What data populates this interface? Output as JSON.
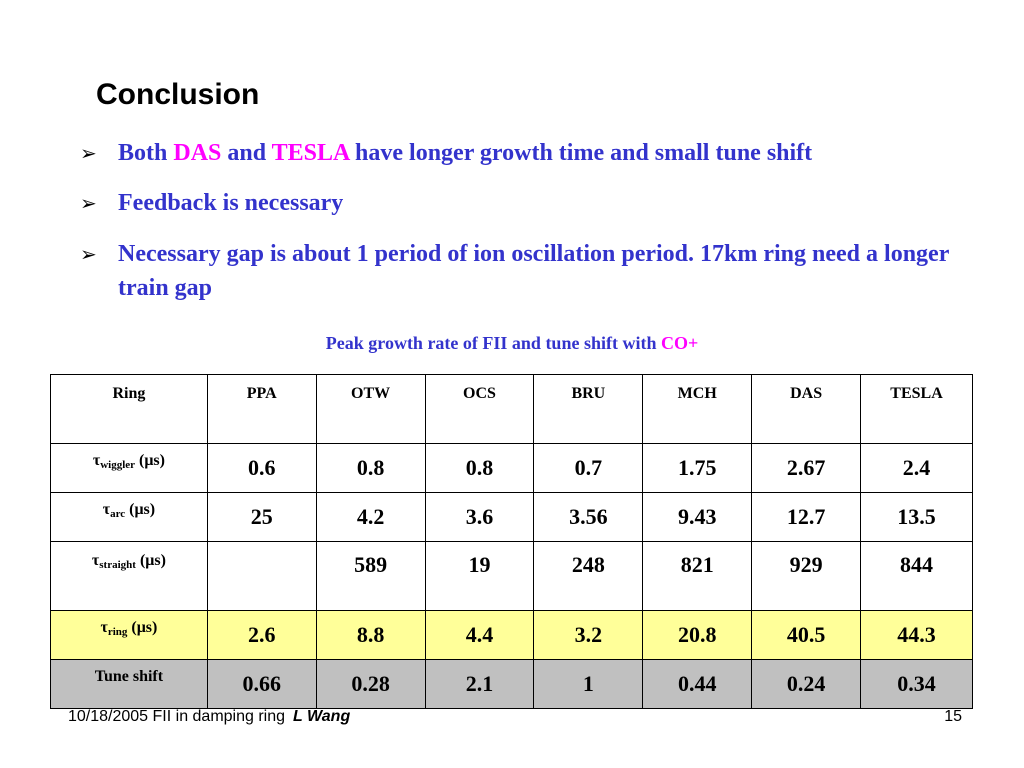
{
  "slide": {
    "title": "Conclusion",
    "bullets": [
      {
        "parts": [
          "Both ",
          "DAS",
          " and ",
          "TESLA",
          " have longer growth time and small tune shift"
        ]
      },
      {
        "text": "Feedback is necessary"
      },
      {
        "text": "Necessary gap is about 1 period of ion oscillation period. 17km ring need a longer train gap"
      }
    ],
    "bullet_marker": "➢"
  },
  "table": {
    "caption_main": "Peak growth rate of FII and tune shift with ",
    "caption_highlight": "CO+",
    "columns": [
      "Ring",
      "PPA",
      "OTW",
      "OCS",
      "BRU",
      "MCH",
      "DAS",
      "TESLA"
    ],
    "rows": [
      {
        "sym": "τ",
        "sub": "wiggler",
        "unit": " (μs)",
        "values": [
          "0.6",
          "0.8",
          "0.8",
          "0.7",
          "1.75",
          "2.67",
          "2.4"
        ]
      },
      {
        "sym": "τ",
        "sub": "arc",
        "unit": " (μs)",
        "values": [
          "25",
          "4.2",
          "3.6",
          "3.56",
          "9.43",
          "12.7",
          "13.5"
        ]
      },
      {
        "sym": "τ",
        "sub": "straight",
        "unit": " (μs)",
        "values": [
          "",
          "589",
          "19",
          "248",
          "821",
          "929",
          "844"
        ]
      },
      {
        "sym": "τ",
        "sub": "ring",
        "unit": " (μs)",
        "values": [
          "2.6",
          "8.8",
          "4.4",
          "3.2",
          "20.8",
          "40.5",
          "44.3"
        ]
      },
      {
        "label": "Tune shift",
        "values": [
          "0.66",
          "0.28",
          "2.1",
          "1",
          "0.44",
          "0.24",
          "0.34"
        ]
      }
    ]
  },
  "footer": {
    "left": "10/18/2005 FII in damping ring",
    "author": "L Wang",
    "page": "15"
  },
  "colors": {
    "bullet_text": "#3333cc",
    "highlight": "#ff00ff",
    "ring_row_values": "#009999",
    "ring_row_bg": "#ffff99",
    "tune_row_bg": "#c0c0c0"
  }
}
